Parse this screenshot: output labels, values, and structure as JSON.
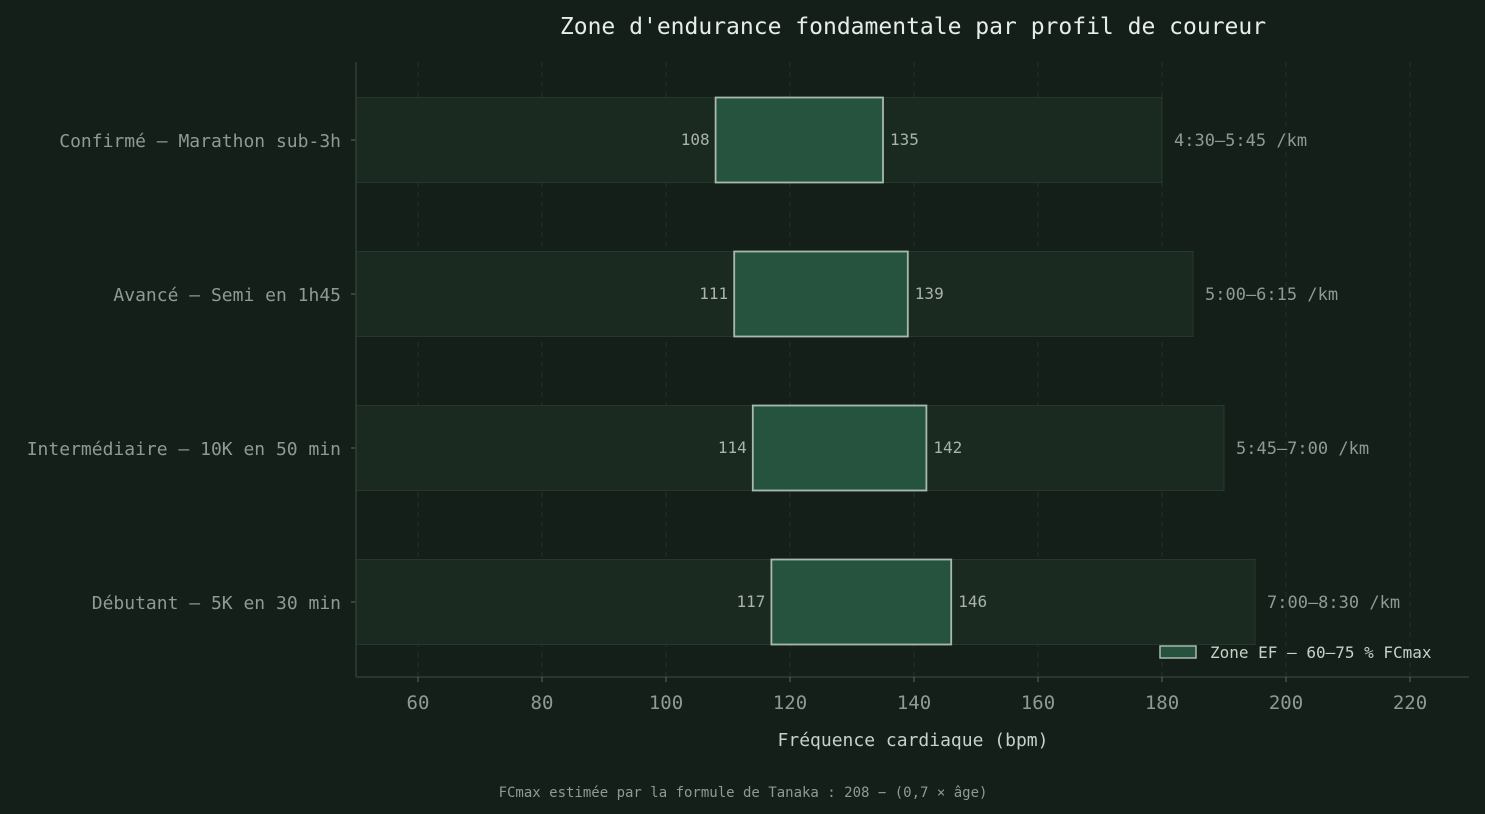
{
  "chart_data": {
    "type": "bar",
    "title": "Zone d'endurance fondamentale par profil de coureur",
    "xlabel": "Fréquence cardiaque (bpm)",
    "ylabel": "",
    "xlim": [
      50,
      230
    ],
    "xticks": [
      60,
      80,
      100,
      120,
      140,
      160,
      180,
      200,
      220
    ],
    "grid": "vertical dashed",
    "legend_position": "bottom-right",
    "categories": [
      "Confirmé — Marathon sub-3h",
      "Avancé — Semi en 1h45",
      "Intermédiaire — 10K en 50 min",
      "Débutant — 5K en 30 min"
    ],
    "range_max": [
      180,
      185,
      190,
      195
    ],
    "zone_low": [
      108,
      111,
      114,
      117
    ],
    "zone_high": [
      135,
      139,
      142,
      146
    ],
    "zone_low_labels": [
      "108",
      "111",
      "114",
      "117"
    ],
    "zone_high_labels": [
      "135",
      "139",
      "142",
      "146"
    ],
    "paces": [
      "4:30–5:45 /km",
      "5:00–6:15 /km",
      "5:45–7:00 /km",
      "7:00–8:30 /km"
    ],
    "series": [
      {
        "name": "Zone EF — 60–75 % FCmax"
      }
    ],
    "footnote": "FCmax estimée par la formule de Tanaka : 208 − (0,7 × âge)",
    "colors": {
      "background": "#131f18",
      "range_bar": "#1a2a21",
      "zone_bar": "#26533d",
      "zone_stroke": "#a9b9ad"
    }
  }
}
